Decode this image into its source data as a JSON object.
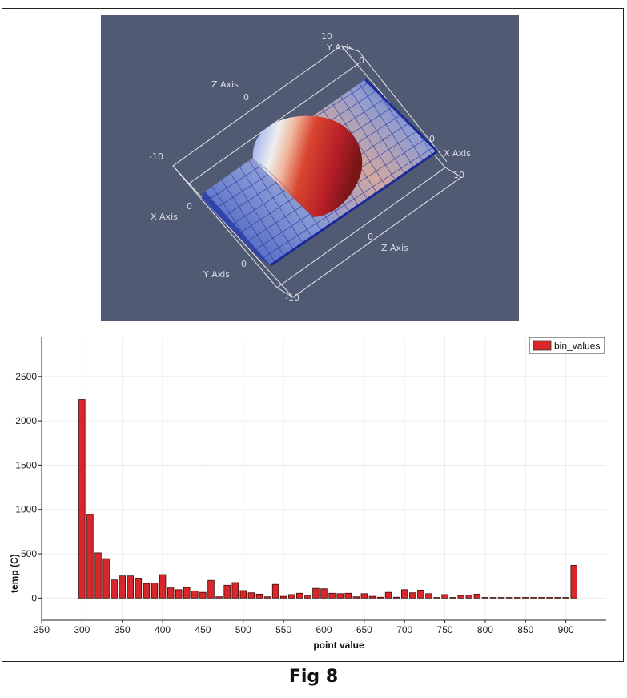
{
  "render_view": {
    "background": "#515a73",
    "axis_labels": {
      "x_axis": "X Axis",
      "y_axis": "Y Axis",
      "z_axis": "Z Axis"
    },
    "tick_labels": {
      "top_10": "10",
      "top_y0": "0",
      "z0_top": "0",
      "neg10_left": "-10",
      "x0_left": "0",
      "right_0": "0",
      "right_10": "10",
      "bottom_z0": "0",
      "bottom_y0": "0",
      "bottom_neg10": "-10"
    }
  },
  "chart_data": {
    "type": "bar",
    "xlabel": "point value",
    "ylabel": "temp (C)",
    "xlim": [
      250,
      950
    ],
    "ylim": [
      -250,
      2950
    ],
    "x_ticks": [
      250,
      300,
      350,
      400,
      450,
      500,
      550,
      600,
      650,
      700,
      750,
      800,
      850,
      900
    ],
    "y_ticks": [
      0,
      500,
      1000,
      1500,
      2000,
      2500
    ],
    "legend_position": "top-right",
    "series": [
      {
        "name": "bin_values",
        "color": "#d8262a",
        "bin_width": 10,
        "x": [
          300,
          310,
          320,
          330,
          340,
          350,
          360,
          370,
          380,
          390,
          400,
          410,
          420,
          430,
          440,
          450,
          460,
          470,
          480,
          490,
          500,
          510,
          520,
          530,
          540,
          550,
          560,
          570,
          580,
          590,
          600,
          610,
          620,
          630,
          640,
          650,
          660,
          670,
          680,
          690,
          700,
          710,
          720,
          730,
          740,
          750,
          760,
          770,
          780,
          790,
          800,
          810,
          820,
          830,
          840,
          850,
          860,
          870,
          880,
          890,
          900,
          910
        ],
        "values": [
          2240,
          945,
          510,
          445,
          205,
          250,
          250,
          225,
          165,
          170,
          265,
          115,
          95,
          120,
          80,
          65,
          200,
          15,
          145,
          175,
          85,
          60,
          45,
          15,
          155,
          20,
          40,
          55,
          25,
          110,
          105,
          55,
          50,
          55,
          15,
          50,
          20,
          10,
          65,
          10,
          95,
          60,
          90,
          50,
          5,
          40,
          5,
          30,
          35,
          45,
          0,
          0,
          0,
          0,
          0,
          0,
          0,
          0,
          0,
          0,
          0,
          370
        ]
      }
    ]
  },
  "caption": "Fig 8"
}
